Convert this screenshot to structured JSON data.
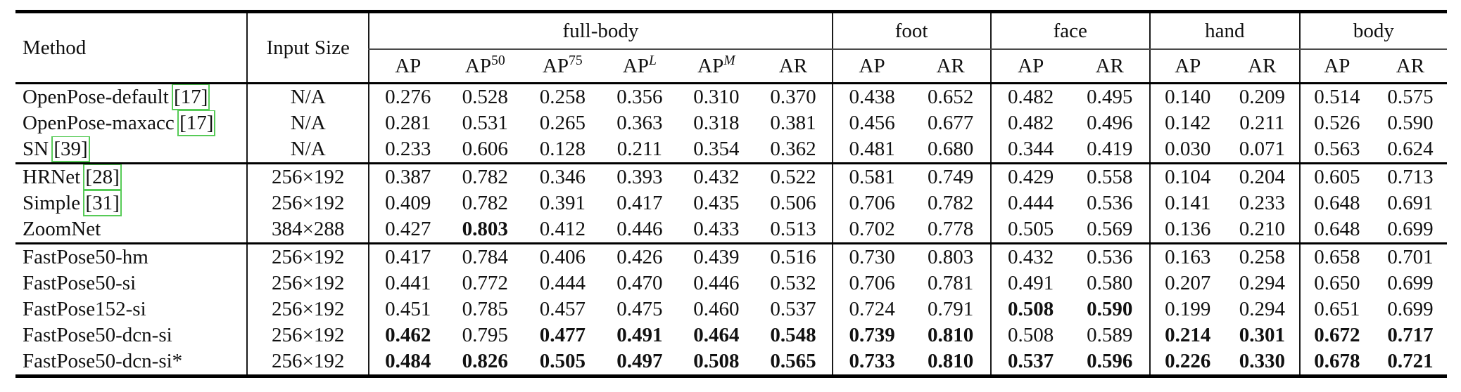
{
  "table": {
    "headers": {
      "method": "Method",
      "input_size": "Input Size"
    },
    "group_headers": [
      "full-body",
      "foot",
      "face",
      "hand",
      "body"
    ],
    "sub_headers": [
      {
        "base": "AP",
        "sup": ""
      },
      {
        "base": "AP",
        "sup": "50"
      },
      {
        "base": "AP",
        "sup": "75"
      },
      {
        "base": "AP",
        "sup": "L"
      },
      {
        "base": "AP",
        "sup": "M"
      },
      {
        "base": "AR",
        "sup": ""
      },
      {
        "base": "AP",
        "sup": ""
      },
      {
        "base": "AR",
        "sup": ""
      },
      {
        "base": "AP",
        "sup": ""
      },
      {
        "base": "AR",
        "sup": ""
      },
      {
        "base": "AP",
        "sup": ""
      },
      {
        "base": "AR",
        "sup": ""
      },
      {
        "base": "AP",
        "sup": ""
      },
      {
        "base": "AR",
        "sup": ""
      }
    ],
    "citation_box_color": "#57cb57",
    "groups": [
      {
        "rows": [
          {
            "method": "OpenPose-default",
            "cite": "[17]",
            "input": "N/A",
            "values": [
              "0.276",
              "0.528",
              "0.258",
              "0.356",
              "0.310",
              "0.370",
              "0.438",
              "0.652",
              "0.482",
              "0.495",
              "0.140",
              "0.209",
              "0.514",
              "0.575"
            ],
            "bold": []
          },
          {
            "method": "OpenPose-maxacc",
            "cite": "[17]",
            "input": "N/A",
            "values": [
              "0.281",
              "0.531",
              "0.265",
              "0.363",
              "0.318",
              "0.381",
              "0.456",
              "0.677",
              "0.482",
              "0.496",
              "0.142",
              "0.211",
              "0.526",
              "0.590"
            ],
            "bold": []
          },
          {
            "method": "SN",
            "cite": "[39]",
            "input": "N/A",
            "values": [
              "0.233",
              "0.606",
              "0.128",
              "0.211",
              "0.354",
              "0.362",
              "0.481",
              "0.680",
              "0.344",
              "0.419",
              "0.030",
              "0.071",
              "0.563",
              "0.624"
            ],
            "bold": []
          }
        ]
      },
      {
        "rows": [
          {
            "method": "HRNet",
            "cite": "[28]",
            "input": "256×192",
            "values": [
              "0.387",
              "0.782",
              "0.346",
              "0.393",
              "0.432",
              "0.522",
              "0.581",
              "0.749",
              "0.429",
              "0.558",
              "0.104",
              "0.204",
              "0.605",
              "0.713"
            ],
            "bold": []
          },
          {
            "method": "Simple",
            "cite": "[31]",
            "input": "256×192",
            "values": [
              "0.409",
              "0.782",
              "0.391",
              "0.417",
              "0.435",
              "0.506",
              "0.706",
              "0.782",
              "0.444",
              "0.536",
              "0.141",
              "0.233",
              "0.648",
              "0.691"
            ],
            "bold": []
          },
          {
            "method": "ZoomNet",
            "cite": "",
            "input": "384×288",
            "values": [
              "0.427",
              "0.803",
              "0.412",
              "0.446",
              "0.433",
              "0.513",
              "0.702",
              "0.778",
              "0.505",
              "0.569",
              "0.136",
              "0.210",
              "0.648",
              "0.699"
            ],
            "bold": [
              1
            ]
          }
        ]
      },
      {
        "rows": [
          {
            "method": "FastPose50-hm",
            "cite": "",
            "input": "256×192",
            "values": [
              "0.417",
              "0.784",
              "0.406",
              "0.426",
              "0.439",
              "0.516",
              "0.730",
              "0.803",
              "0.432",
              "0.536",
              "0.163",
              "0.258",
              "0.658",
              "0.701"
            ],
            "bold": []
          },
          {
            "method": "FastPose50-si",
            "cite": "",
            "input": "256×192",
            "values": [
              "0.441",
              "0.772",
              "0.444",
              "0.470",
              "0.446",
              "0.532",
              "0.706",
              "0.781",
              "0.491",
              "0.580",
              "0.207",
              "0.294",
              "0.650",
              "0.699"
            ],
            "bold": []
          },
          {
            "method": "FastPose152-si",
            "cite": "",
            "input": "256×192",
            "values": [
              "0.451",
              "0.785",
              "0.457",
              "0.475",
              "0.460",
              "0.537",
              "0.724",
              "0.791",
              "0.508",
              "0.590",
              "0.199",
              "0.294",
              "0.651",
              "0.699"
            ],
            "bold": [
              8,
              9
            ]
          },
          {
            "method": "FastPose50-dcn-si",
            "cite": "",
            "input": "256×192",
            "values": [
              "0.462",
              "0.795",
              "0.477",
              "0.491",
              "0.464",
              "0.548",
              "0.739",
              "0.810",
              "0.508",
              "0.589",
              "0.214",
              "0.301",
              "0.672",
              "0.717"
            ],
            "bold": [
              0,
              2,
              3,
              4,
              5,
              6,
              7,
              10,
              11,
              12,
              13
            ]
          },
          {
            "method": "FastPose50-dcn-si*",
            "cite": "",
            "input": "256×192",
            "values": [
              "0.484",
              "0.826",
              "0.505",
              "0.497",
              "0.508",
              "0.565",
              "0.733",
              "0.810",
              "0.537",
              "0.596",
              "0.226",
              "0.330",
              "0.678",
              "0.721"
            ],
            "bold": [
              0,
              1,
              2,
              3,
              4,
              5,
              6,
              7,
              8,
              9,
              10,
              11,
              12,
              13
            ]
          }
        ]
      }
    ]
  }
}
